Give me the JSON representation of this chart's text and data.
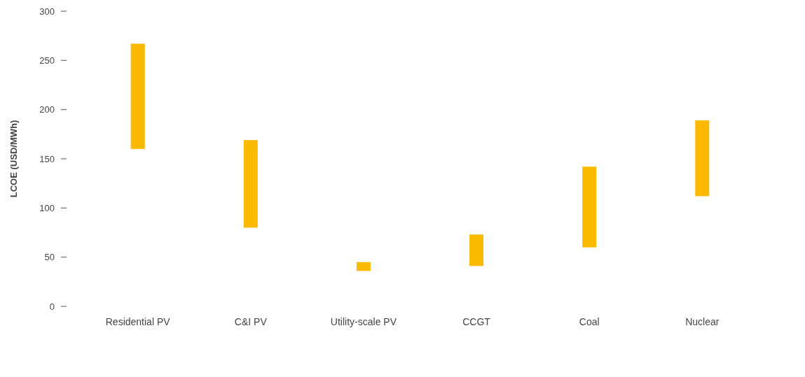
{
  "chart_data": {
    "type": "bar",
    "ylabel": "LCOE (USD/MWh)",
    "categories": [
      "Residential PV",
      "C&I PV",
      "Utility-scale PV",
      "CCGT",
      "Coal",
      "Nuclear"
    ],
    "base": [
      160,
      80,
      36,
      41,
      60,
      112
    ],
    "values": [
      107,
      89,
      9,
      32,
      82,
      77
    ],
    "color": "#fbb900",
    "ylim": [
      0,
      300
    ],
    "yticks": [
      0,
      50,
      100,
      150,
      200,
      250,
      300
    ],
    "grid": false
  }
}
